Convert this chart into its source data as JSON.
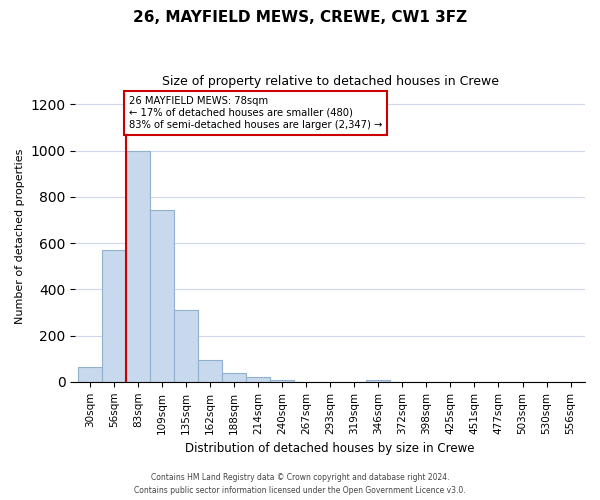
{
  "title": "26, MAYFIELD MEWS, CREWE, CW1 3FZ",
  "subtitle": "Size of property relative to detached houses in Crewe",
  "xlabel": "Distribution of detached houses by size in Crewe",
  "ylabel": "Number of detached properties",
  "bar_labels": [
    "30sqm",
    "56sqm",
    "83sqm",
    "109sqm",
    "135sqm",
    "162sqm",
    "188sqm",
    "214sqm",
    "240sqm",
    "267sqm",
    "293sqm",
    "319sqm",
    "346sqm",
    "372sqm",
    "398sqm",
    "425sqm",
    "451sqm",
    "477sqm",
    "503sqm",
    "530sqm",
    "556sqm"
  ],
  "bar_heights": [
    65,
    570,
    1000,
    745,
    310,
    95,
    40,
    20,
    10,
    0,
    0,
    0,
    8,
    0,
    0,
    0,
    0,
    0,
    0,
    0,
    0
  ],
  "bar_color": "#c8d9ed",
  "bar_edge_color": "#90b0cc",
  "subject_line_color": "#cc0000",
  "annotation_text": "26 MAYFIELD MEWS: 78sqm\n← 17% of detached houses are smaller (480)\n83% of semi-detached houses are larger (2,347) →",
  "annotation_box_color": "#ffffff",
  "annotation_box_edge_color": "#cc0000",
  "ylim": [
    0,
    1260
  ],
  "footer_line1": "Contains HM Land Registry data © Crown copyright and database right 2024.",
  "footer_line2": "Contains public sector information licensed under the Open Government Licence v3.0.",
  "background_color": "#ffffff",
  "grid_color": "#d0d8ee"
}
